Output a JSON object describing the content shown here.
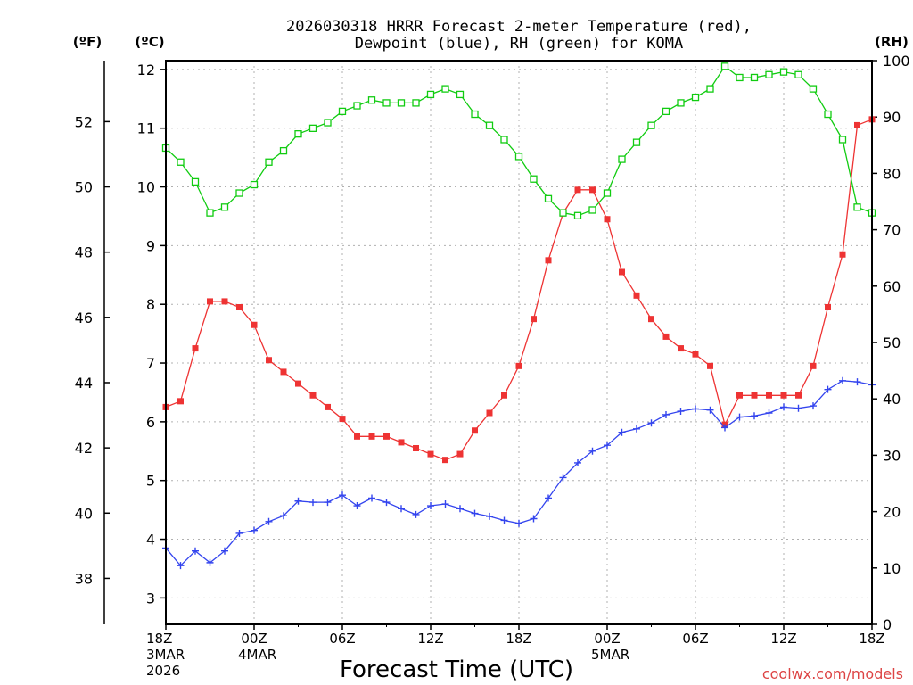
{
  "title_line1": "2026030318 HRRR Forecast 2-meter Temperature (red),",
  "title_line2": "Dewpoint (blue), RH (green) for KOMA",
  "units": {
    "fahrenheit": "(ºF)",
    "celsius": "(ºC)",
    "rh": "(RH)"
  },
  "credit": "coolwx.com/models",
  "colors": {
    "temperature": "#ee3333",
    "dewpoint": "#3344ee",
    "rh": "#11cc11"
  },
  "chart_data": {
    "type": "line",
    "title": "2026030318 HRRR Forecast 2-meter Temperature (red), Dewpoint (blue), RH (green) for KOMA",
    "xlabel": "Forecast Time (UTC)",
    "ylabel_left": "(ºC)",
    "ylabel_far_left": "(ºF)",
    "ylabel_right": "(RH)",
    "x_unit": "forecast hour from 2026-03-03 18Z",
    "xlim": [
      0,
      48
    ],
    "ylim_celsius": [
      2.55,
      12.15
    ],
    "ylim_rh": [
      0,
      100
    ],
    "x_ticks": [
      {
        "hour": 0,
        "lines": [
          "18Z",
          "3MAR",
          "2026"
        ]
      },
      {
        "hour": 6,
        "lines": [
          "00Z",
          "4MAR"
        ]
      },
      {
        "hour": 12,
        "lines": [
          "06Z"
        ]
      },
      {
        "hour": 18,
        "lines": [
          "12Z"
        ]
      },
      {
        "hour": 24,
        "lines": [
          "18Z"
        ]
      },
      {
        "hour": 30,
        "lines": [
          "00Z",
          "5MAR"
        ]
      },
      {
        "hour": 36,
        "lines": [
          "06Z"
        ]
      },
      {
        "hour": 42,
        "lines": [
          "12Z"
        ]
      },
      {
        "hour": 48,
        "lines": [
          "18Z"
        ]
      }
    ],
    "celsius_ticks": [
      "3",
      "4",
      "5",
      "6",
      "7",
      "8",
      "9",
      "10",
      "11",
      "12"
    ],
    "fahrenheit_ticks": [
      "38",
      "40",
      "42",
      "44",
      "46",
      "48",
      "50",
      "52"
    ],
    "rh_ticks": [
      "0",
      "10",
      "20",
      "30",
      "40",
      "50",
      "60",
      "70",
      "80",
      "90",
      "100"
    ],
    "grid": true,
    "series": [
      {
        "name": "Temperature",
        "unit": "C",
        "marker": "filled-square",
        "values": [
          6.25,
          6.35,
          7.25,
          8.05,
          8.05,
          7.95,
          7.65,
          7.05,
          6.85,
          6.65,
          6.45,
          6.25,
          6.05,
          5.75,
          5.75,
          5.75,
          5.65,
          5.55,
          5.45,
          5.35,
          5.45,
          5.85,
          6.15,
          6.45,
          6.95,
          7.75,
          8.75,
          9.55,
          9.95,
          9.95,
          9.45,
          8.55,
          8.15,
          7.75,
          7.45,
          7.25,
          7.15,
          6.95,
          5.95,
          6.45,
          6.45,
          6.45,
          6.45,
          6.45,
          6.95,
          7.95,
          8.85,
          11.05,
          11.15
        ]
      },
      {
        "name": "Dewpoint",
        "unit": "C",
        "marker": "plus",
        "values": [
          3.85,
          3.55,
          3.8,
          3.6,
          3.8,
          4.1,
          4.15,
          4.3,
          4.4,
          4.65,
          4.63,
          4.63,
          4.75,
          4.57,
          4.7,
          4.63,
          4.52,
          4.42,
          4.57,
          4.6,
          4.52,
          4.44,
          4.39,
          4.32,
          4.27,
          4.35,
          4.7,
          5.05,
          5.3,
          5.5,
          5.6,
          5.82,
          5.88,
          5.98,
          6.12,
          6.18,
          6.22,
          6.2,
          5.9,
          6.08,
          6.1,
          6.15,
          6.25,
          6.23,
          6.27,
          6.55,
          6.7,
          6.68,
          6.63
        ]
      },
      {
        "name": "RH",
        "unit": "%",
        "marker": "open-square",
        "values": [
          84.5,
          82,
          78.5,
          73,
          74,
          76.5,
          78,
          82,
          84,
          87,
          88,
          89,
          91,
          92,
          93,
          92.5,
          92.5,
          92.5,
          94,
          95,
          94,
          90.5,
          88.5,
          86,
          83,
          79,
          75.5,
          73,
          72.5,
          73.5,
          76.5,
          82.5,
          85.5,
          88.5,
          91,
          92.5,
          93.5,
          95,
          99,
          97,
          97,
          97.5,
          98,
          97.5,
          95,
          90.5,
          86,
          74,
          73
        ]
      }
    ]
  }
}
